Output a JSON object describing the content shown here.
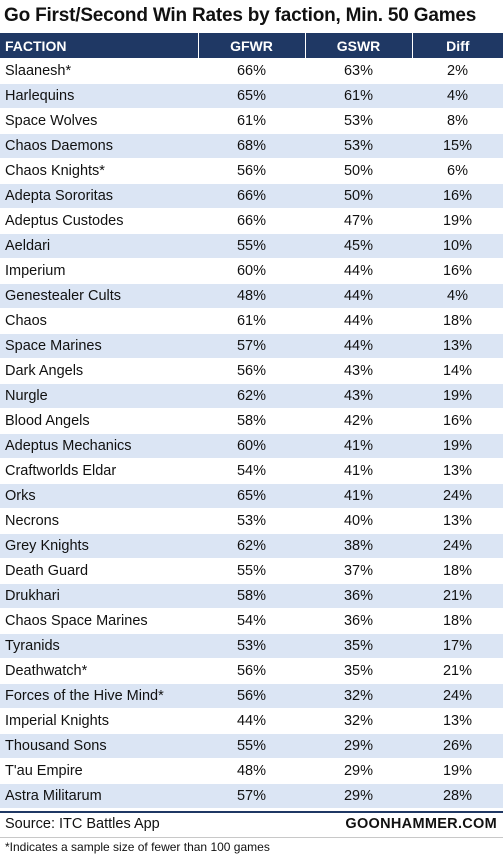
{
  "chart_data": {
    "type": "table",
    "title": "Go First/Second Win Rates by faction, Min. 50 Games",
    "columns": [
      "FACTION",
      "GFWR",
      "GSWR",
      "Diff"
    ],
    "rows": [
      [
        "Slaanesh*",
        "66%",
        "63%",
        "2%"
      ],
      [
        "Harlequins",
        "65%",
        "61%",
        "4%"
      ],
      [
        "Space Wolves",
        "61%",
        "53%",
        "8%"
      ],
      [
        "Chaos Daemons",
        "68%",
        "53%",
        "15%"
      ],
      [
        "Chaos Knights*",
        "56%",
        "50%",
        "6%"
      ],
      [
        "Adepta Sororitas",
        "66%",
        "50%",
        "16%"
      ],
      [
        "Adeptus Custodes",
        "66%",
        "47%",
        "19%"
      ],
      [
        "Aeldari",
        "55%",
        "45%",
        "10%"
      ],
      [
        "Imperium",
        "60%",
        "44%",
        "16%"
      ],
      [
        "Genestealer Cults",
        "48%",
        "44%",
        "4%"
      ],
      [
        "Chaos",
        "61%",
        "44%",
        "18%"
      ],
      [
        "Space Marines",
        "57%",
        "44%",
        "13%"
      ],
      [
        "Dark Angels",
        "56%",
        "43%",
        "14%"
      ],
      [
        "Nurgle",
        "62%",
        "43%",
        "19%"
      ],
      [
        "Blood Angels",
        "58%",
        "42%",
        "16%"
      ],
      [
        "Adeptus Mechanics",
        "60%",
        "41%",
        "19%"
      ],
      [
        "Craftworlds Eldar",
        "54%",
        "41%",
        "13%"
      ],
      [
        "Orks",
        "65%",
        "41%",
        "24%"
      ],
      [
        "Necrons",
        "53%",
        "40%",
        "13%"
      ],
      [
        "Grey Knights",
        "62%",
        "38%",
        "24%"
      ],
      [
        "Death Guard",
        "55%",
        "37%",
        "18%"
      ],
      [
        "Drukhari",
        "58%",
        "36%",
        "21%"
      ],
      [
        "Chaos Space Marines",
        "54%",
        "36%",
        "18%"
      ],
      [
        "Tyranids",
        "53%",
        "35%",
        "17%"
      ],
      [
        "Deathwatch*",
        "56%",
        "35%",
        "21%"
      ],
      [
        "Forces of the Hive Mind*",
        "56%",
        "32%",
        "24%"
      ],
      [
        "Imperial Knights",
        "44%",
        "32%",
        "13%"
      ],
      [
        "Thousand Sons",
        "55%",
        "29%",
        "26%"
      ],
      [
        "T'au Empire",
        "48%",
        "29%",
        "19%"
      ],
      [
        "Astra Militarum",
        "57%",
        "29%",
        "28%"
      ]
    ]
  },
  "footer": {
    "source": "Source: ITC Battles App",
    "brand": "GOONHAMMER.COM",
    "note": "*Indicates a sample size of fewer than 100 games"
  },
  "colors": {
    "header_bg": "#1f3864",
    "stripe": "#dbe5f4"
  }
}
